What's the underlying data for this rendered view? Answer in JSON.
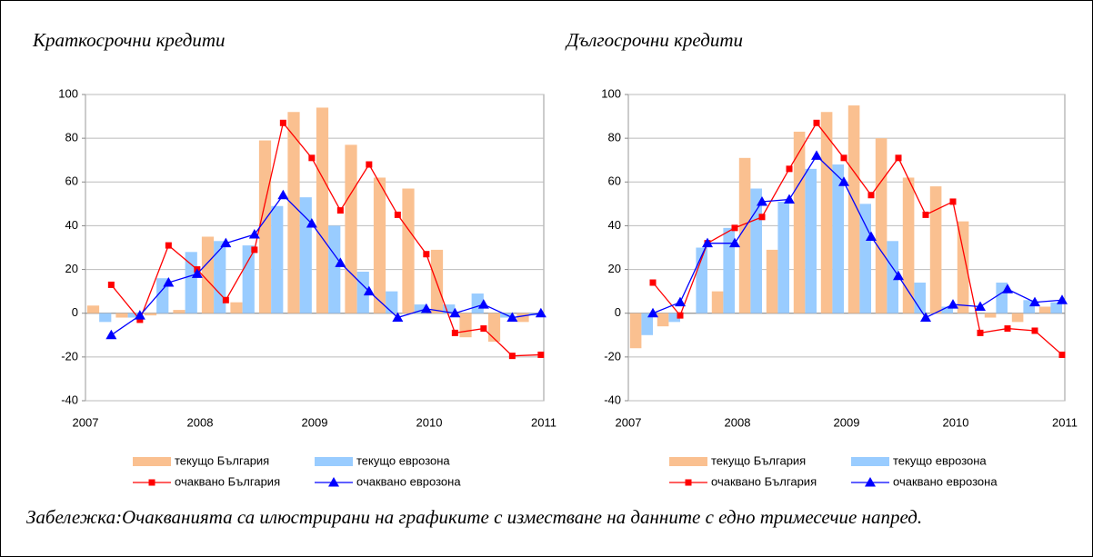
{
  "chart_data": [
    {
      "type": "bar",
      "title": "Краткосрочни кредити",
      "categories": [
        null,
        null,
        null,
        null,
        null,
        null,
        null,
        null,
        null,
        null,
        null,
        null,
        null,
        null,
        null,
        null
      ],
      "year_labels": [
        "2007",
        "2008",
        "2009",
        "2010",
        "2011"
      ],
      "ylim": [
        -40,
        100
      ],
      "yticks": [
        -40,
        -20,
        0,
        20,
        40,
        60,
        80,
        100
      ],
      "grid": true,
      "series": [
        {
          "name": "текущо България",
          "kind": "bar",
          "color": "#fac090",
          "values": [
            3.5,
            -2,
            -1,
            1.5,
            35,
            5,
            79,
            92,
            94,
            77,
            62,
            57,
            29,
            -11,
            -13,
            -4
          ]
        },
        {
          "name": "текущо еврозона",
          "kind": "bar",
          "color": "#99ccff",
          "values": [
            -4,
            -2,
            16,
            28,
            33,
            31,
            49,
            53,
            40,
            19,
            10,
            4,
            4,
            9,
            -2,
            -1
          ]
        },
        {
          "name": "очаквано България",
          "kind": "line",
          "marker": "square",
          "color": "#ff0000",
          "values": [
            13,
            -3,
            31,
            20,
            6,
            29,
            87,
            71,
            47,
            68,
            45,
            27,
            -9,
            -7,
            -19.5,
            -19
          ]
        },
        {
          "name": "очаквано еврозона",
          "kind": "line",
          "marker": "triangle",
          "color": "#0000ff",
          "values": [
            -10,
            -1,
            14,
            18,
            32,
            36,
            54,
            41,
            23,
            10,
            -2,
            2,
            0,
            4,
            -2,
            0
          ]
        }
      ]
    },
    {
      "type": "bar",
      "title": "Дългосрочни кредити",
      "categories": [
        null,
        null,
        null,
        null,
        null,
        null,
        null,
        null,
        null,
        null,
        null,
        null,
        null,
        null,
        null,
        null
      ],
      "year_labels": [
        "2007",
        "2008",
        "2009",
        "2010",
        "2011"
      ],
      "ylim": [
        -40,
        100
      ],
      "yticks": [
        -40,
        -20,
        0,
        20,
        40,
        60,
        80,
        100
      ],
      "grid": true,
      "series": [
        {
          "name": "текущо България",
          "kind": "bar",
          "color": "#fac090",
          "values": [
            -16,
            -6,
            0,
            10,
            71,
            29,
            83,
            92,
            95,
            80,
            62,
            58,
            42,
            -2,
            -4,
            3
          ]
        },
        {
          "name": "текущо еврозона",
          "kind": "bar",
          "color": "#99ccff",
          "values": [
            -10,
            -4,
            30,
            39,
            57,
            51,
            66,
            68,
            50,
            33,
            14,
            3,
            0,
            14,
            6,
            5
          ]
        },
        {
          "name": "очаквано България",
          "kind": "line",
          "marker": "square",
          "color": "#ff0000",
          "values": [
            14,
            -1,
            32,
            39,
            44,
            66,
            87,
            71,
            54,
            71,
            45,
            51,
            -9,
            -7,
            -8,
            -19
          ]
        },
        {
          "name": "очаквано еврозона",
          "kind": "line",
          "marker": "triangle",
          "color": "#0000ff",
          "values": [
            0,
            5,
            32,
            32,
            51,
            52,
            72,
            60,
            35,
            17,
            -2,
            4,
            3,
            11,
            5,
            6
          ]
        }
      ]
    }
  ],
  "note": "Забележка:Очакванията са илюстрирани на графиките с изместване на данните с едно тримесечие напред."
}
